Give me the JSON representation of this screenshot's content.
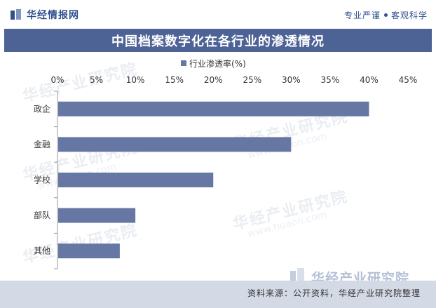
{
  "header": {
    "brand": "华经情报网",
    "slogan_left": "专业严谨",
    "slogan_right": "客观科学"
  },
  "title": "中国档案数字化在各行业的渗透情况",
  "watermark": {
    "text": "华经产业研究院",
    "url": "www.huaon.com"
  },
  "source": "资料来源：公开资料，华经产业研究院整理",
  "corner_logo": "华经产业研究院",
  "colors": {
    "bar": "#6677a4",
    "title_bg": "#4d6295",
    "brand": "#2f4f8f",
    "source_bg": "#d4d9e6"
  },
  "chart_data": {
    "type": "bar",
    "orientation": "horizontal",
    "categories": [
      "政企",
      "金融",
      "学校",
      "部队",
      "其他"
    ],
    "series": [
      {
        "name": "行业渗透率(%)",
        "values": [
          40,
          30,
          20,
          10,
          8
        ]
      }
    ],
    "xlim": [
      0,
      45
    ],
    "xticks": [
      "0%",
      "5%",
      "10%",
      "15%",
      "20%",
      "25%",
      "30%",
      "35%",
      "40%",
      "45%"
    ],
    "x_axis_position": "top",
    "legend_position": "top-center",
    "grid": false
  }
}
